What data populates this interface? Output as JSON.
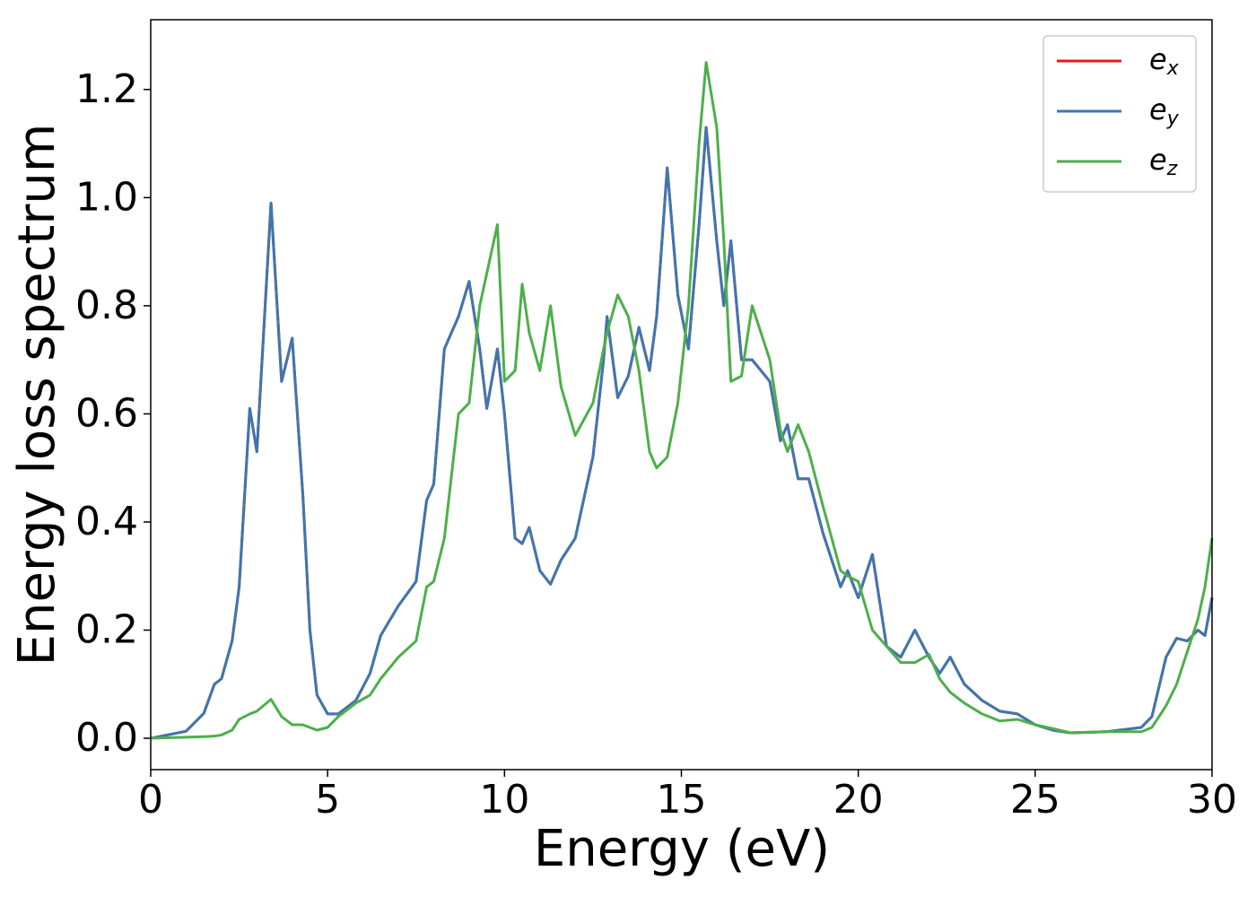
{
  "chart_data": {
    "type": "line",
    "xlabel": "Energy (eV)",
    "ylabel": "Energy loss spectrum",
    "xlim": [
      0,
      30
    ],
    "ylim": [
      -0.058,
      1.329
    ],
    "xticks": [
      0,
      5,
      10,
      15,
      20,
      25,
      30
    ],
    "yticks": [
      {
        "value": 0,
        "label": "0.0"
      },
      0.2,
      0.4,
      0.6,
      0.8,
      {
        "value": 1,
        "label": "1.0"
      },
      1.2
    ],
    "legend": "upper right",
    "x": [
      0,
      1,
      1.5,
      1.8,
      2.0,
      2.3,
      2.5,
      2.8,
      3.0,
      3.4,
      3.7,
      4.0,
      4.3,
      4.5,
      4.7,
      5.0,
      5.3,
      5.8,
      6.2,
      6.5,
      7.0,
      7.5,
      7.8,
      8.0,
      8.3,
      8.7,
      9.0,
      9.3,
      9.5,
      9.8,
      10.0,
      10.3,
      10.5,
      10.7,
      11.0,
      11.3,
      11.6,
      12.0,
      12.5,
      12.8,
      12.9,
      13.2,
      13.5,
      13.8,
      14.1,
      14.3,
      14.6,
      14.9,
      15.2,
      15.5,
      15.7,
      16.0,
      16.2,
      16.4,
      16.7,
      17.0,
      17.5,
      17.8,
      18.0,
      18.3,
      18.6,
      19.0,
      19.5,
      19.7,
      20.0,
      20.4,
      20.8,
      21.2,
      21.6,
      22.0,
      22.3,
      22.6,
      23.0,
      23.5,
      24.0,
      24.5,
      25.0,
      25.5,
      26.0,
      27.0,
      28.0,
      28.3,
      28.7,
      29.0,
      29.3,
      29.6,
      29.8,
      30.0
    ],
    "series": [
      {
        "name": "e",
        "subscript": "x",
        "color": "#e41a1c",
        "values": [
          0,
          0.013,
          0.046,
          0.1,
          0.11,
          0.18,
          0.28,
          0.61,
          0.53,
          0.99,
          0.66,
          0.74,
          0.45,
          0.2,
          0.08,
          0.045,
          0.045,
          0.07,
          0.12,
          0.19,
          0.245,
          0.29,
          0.44,
          0.47,
          0.72,
          0.78,
          0.845,
          0.72,
          0.61,
          0.72,
          0.6,
          0.37,
          0.36,
          0.39,
          0.31,
          0.285,
          0.33,
          0.37,
          0.52,
          0.7,
          0.78,
          0.63,
          0.67,
          0.76,
          0.68,
          0.78,
          1.055,
          0.82,
          0.72,
          0.95,
          1.13,
          0.92,
          0.8,
          0.92,
          0.7,
          0.7,
          0.66,
          0.55,
          0.58,
          0.48,
          0.48,
          0.38,
          0.28,
          0.31,
          0.26,
          0.34,
          0.17,
          0.15,
          0.2,
          0.15,
          0.12,
          0.15,
          0.1,
          0.07,
          0.05,
          0.045,
          0.025,
          0.015,
          0.01,
          0.012,
          0.02,
          0.04,
          0.15,
          0.185,
          0.18,
          0.2,
          0.19,
          0.26
        ]
      },
      {
        "name": "e",
        "subscript": "y",
        "color": "#3d77b0",
        "values": [
          0,
          0.013,
          0.046,
          0.1,
          0.11,
          0.18,
          0.28,
          0.61,
          0.53,
          0.99,
          0.66,
          0.74,
          0.45,
          0.2,
          0.08,
          0.045,
          0.045,
          0.07,
          0.12,
          0.19,
          0.245,
          0.29,
          0.44,
          0.47,
          0.72,
          0.78,
          0.845,
          0.72,
          0.61,
          0.72,
          0.6,
          0.37,
          0.36,
          0.39,
          0.31,
          0.285,
          0.33,
          0.37,
          0.52,
          0.7,
          0.78,
          0.63,
          0.67,
          0.76,
          0.68,
          0.78,
          1.055,
          0.82,
          0.72,
          0.95,
          1.13,
          0.92,
          0.8,
          0.92,
          0.7,
          0.7,
          0.66,
          0.55,
          0.58,
          0.48,
          0.48,
          0.38,
          0.28,
          0.31,
          0.26,
          0.34,
          0.17,
          0.15,
          0.2,
          0.15,
          0.12,
          0.15,
          0.1,
          0.07,
          0.05,
          0.045,
          0.025,
          0.015,
          0.01,
          0.012,
          0.02,
          0.04,
          0.15,
          0.185,
          0.18,
          0.2,
          0.19,
          0.26
        ]
      },
      {
        "name": "e",
        "subscript": "z",
        "color": "#4daf4a",
        "values": [
          0,
          0.002,
          0.003,
          0.004,
          0.006,
          0.015,
          0.035,
          0.045,
          0.05,
          0.072,
          0.04,
          0.025,
          0.025,
          0.02,
          0.015,
          0.02,
          0.04,
          0.065,
          0.08,
          0.11,
          0.15,
          0.18,
          0.28,
          0.29,
          0.37,
          0.6,
          0.62,
          0.8,
          0.86,
          0.95,
          0.66,
          0.68,
          0.84,
          0.75,
          0.68,
          0.8,
          0.65,
          0.56,
          0.62,
          0.72,
          0.75,
          0.82,
          0.78,
          0.68,
          0.53,
          0.5,
          0.52,
          0.62,
          0.8,
          1.1,
          1.25,
          1.13,
          0.92,
          0.66,
          0.67,
          0.8,
          0.7,
          0.57,
          0.53,
          0.58,
          0.53,
          0.43,
          0.31,
          0.3,
          0.29,
          0.2,
          0.17,
          0.14,
          0.14,
          0.155,
          0.11,
          0.085,
          0.065,
          0.045,
          0.032,
          0.035,
          0.025,
          0.018,
          0.01,
          0.012,
          0.012,
          0.02,
          0.06,
          0.1,
          0.16,
          0.22,
          0.28,
          0.37
        ]
      }
    ]
  }
}
